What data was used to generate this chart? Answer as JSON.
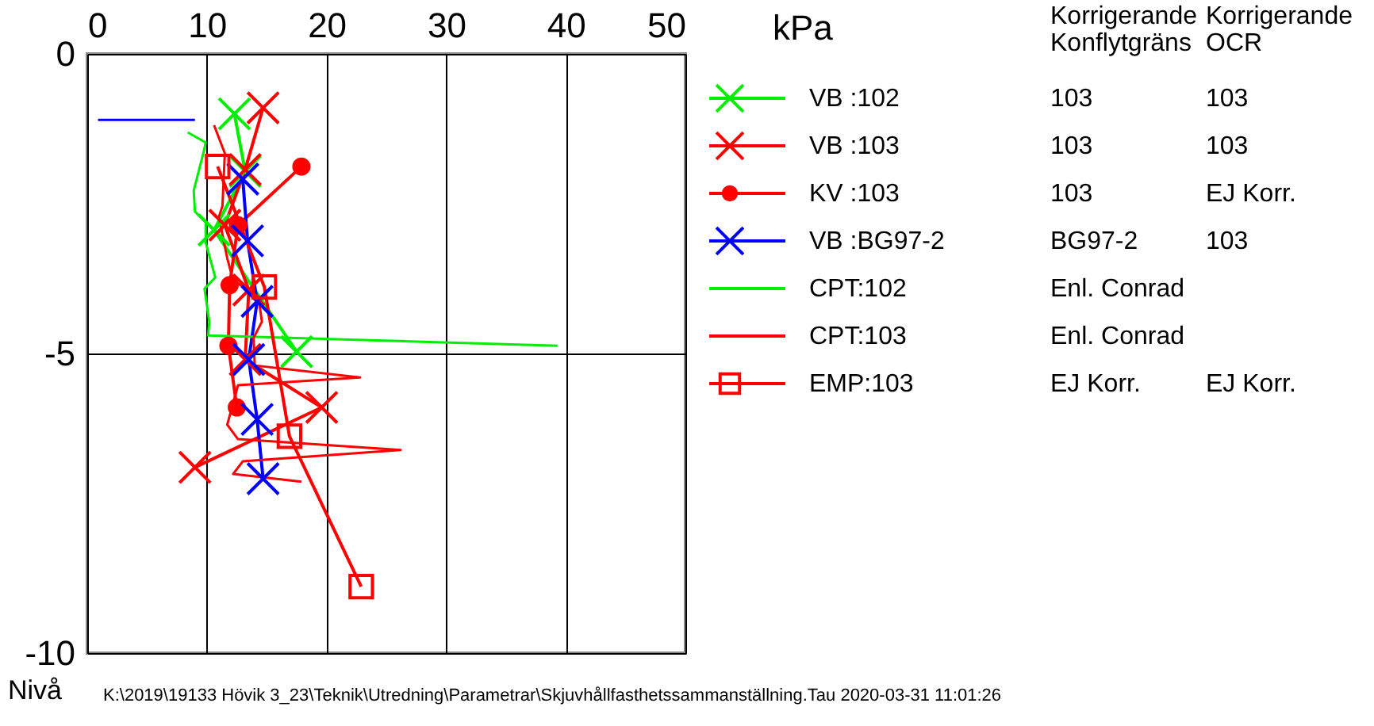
{
  "chart_data": {
    "type": "line",
    "xlabel": "kPa",
    "ylabel": "Nivå",
    "xlim": [
      0,
      50
    ],
    "xticks": [
      0,
      10,
      20,
      30,
      40,
      50
    ],
    "ylim": [
      -10,
      0
    ],
    "yticks": [
      0,
      -5,
      -10
    ],
    "grid": true,
    "legend": "right",
    "series": [
      {
        "name": "VB :102",
        "color": "#00ee00",
        "marker": "cross",
        "x": [
          12.3,
          13.2,
          10.6,
          17.5
        ],
        "values": [
          -1.0,
          -1.96,
          -2.94,
          -4.97
        ]
      },
      {
        "name": "VB :103",
        "color": "#ff0000",
        "marker": "cross",
        "x": [
          14.7,
          13.2,
          11.5,
          13.5,
          13.2,
          19.6,
          9.0
        ],
        "values": [
          -0.9,
          -1.93,
          -2.86,
          -3.94,
          -5.1,
          -5.9,
          -6.9
        ]
      },
      {
        "name": "KV :103",
        "color": "#ff0000",
        "marker": "circle",
        "x": [
          17.9,
          12.6,
          11.9,
          11.8,
          12.5
        ],
        "values": [
          -1.88,
          -2.86,
          -3.86,
          -4.87,
          -5.9
        ]
      },
      {
        "name": "VB :BG97-2",
        "color": "#0000ff",
        "marker": "cross",
        "x": [
          13.0,
          13.4,
          14.2,
          13.5,
          14.2,
          14.7
        ],
        "values": [
          -2.09,
          -3.12,
          -4.13,
          -5.1,
          -6.1,
          -7.09
        ]
      },
      {
        "name": "CPT:102",
        "color": "#00ee00",
        "marker": "none",
        "x": [
          8.4,
          9.9,
          9.7,
          8.9,
          9.0,
          9.9,
          9.9,
          10.7,
          9.8,
          10.2,
          10.1,
          39.3
        ],
        "values": [
          -1.31,
          -1.48,
          -1.66,
          -2.28,
          -2.63,
          -2.81,
          -3.15,
          -3.73,
          -3.92,
          -4.47,
          -4.7,
          -4.87
        ]
      },
      {
        "name": "CPT:103",
        "color": "#ff0000",
        "marker": "none",
        "x": [
          10.6,
          11.5,
          11.3,
          11.0,
          11.7,
          12.2,
          14.3,
          14.6,
          13.9,
          14.0,
          22.8,
          12.6,
          11.7,
          12.6,
          26.2,
          13.0,
          12.2,
          17.9
        ],
        "values": [
          -1.19,
          -1.66,
          -2.54,
          -2.72,
          -3.41,
          -3.78,
          -4.05,
          -4.47,
          -4.74,
          -5.2,
          -5.4,
          -5.53,
          -6.19,
          -6.43,
          -6.61,
          -6.8,
          -7.01,
          -7.14
        ]
      },
      {
        "name": "EMP:103",
        "color": "#ff0000",
        "marker": "square",
        "x": [
          10.9,
          14.8,
          16.9,
          22.9
        ],
        "values": [
          -1.88,
          -3.89,
          -6.38,
          -8.89
        ]
      },
      {
        "color": "#0000ff",
        "marker": "none",
        "x": [
          0.9,
          9.0
        ],
        "values": [
          -1.1,
          -1.1
        ]
      }
    ],
    "annotations": [
      "Korrigerande  Korrigerande",
      "Konflytgräns  OCR",
      "103  103",
      "103  103",
      "103  EJ Korr.",
      "BG97-2  103",
      "Enl. Conrad",
      "Enl. Conrad",
      "EJ Korr.  EJ Korr.",
      "K:\\2019\\19133 Hövik 3_23\\Teknik\\Utredning\\Parametrar\\Skjuvhållfasthetssammanställning.Tau  2020-03-31 11:01:26"
    ]
  }
}
